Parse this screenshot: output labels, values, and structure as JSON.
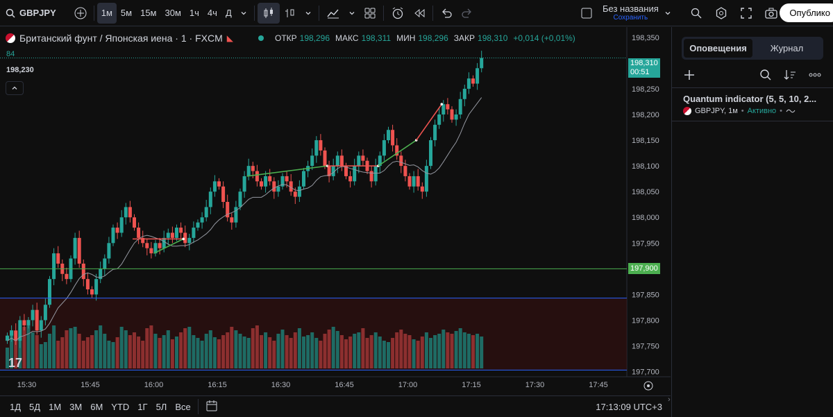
{
  "toolbar": {
    "symbol": "GBPJPY",
    "intervals": [
      "1м",
      "5м",
      "15м",
      "30м",
      "1ч",
      "4ч",
      "Д"
    ],
    "active_interval": "1м",
    "layout_name": "Без названия",
    "layout_status": "Сохранить",
    "publish_label": "Опублико"
  },
  "legend": {
    "title": "Британский фунт / Японская иена · 1 · FXCM",
    "open_label": "ОТКР",
    "open": "198,296",
    "high_label": "МАКС",
    "high": "198,311",
    "low_label": "МИН",
    "low": "198,296",
    "close_label": "ЗАКР",
    "close": "198,310",
    "change": "+0,014 (+0,01%)",
    "indicator_value": "84",
    "crosshair_price": "198,230"
  },
  "price_axis": {
    "ticks": [
      "198,350",
      "198,300",
      "198,250",
      "198,200",
      "198,150",
      "198,100",
      "198,050",
      "198,000",
      "197,950",
      "197,900",
      "197,850",
      "197,800",
      "197,750",
      "197,700"
    ],
    "last_price": "198,310",
    "countdown": "00:51",
    "alert_line_price": "197,900"
  },
  "time_axis": {
    "ticks": [
      "15:30",
      "15:45",
      "16:00",
      "16:15",
      "16:30",
      "16:45",
      "17:00",
      "17:15",
      "17:30",
      "17:45"
    ]
  },
  "bottom": {
    "ranges": [
      "1Д",
      "5Д",
      "1М",
      "3М",
      "6М",
      "YTD",
      "1Г",
      "5Л",
      "Все"
    ],
    "clock": "17:13:09 UTC+3"
  },
  "panel": {
    "tabs": [
      "Оповещения",
      "Журнал"
    ],
    "active_tab": "Оповещения",
    "alert_title": "Quantum indicator (5, 5, 10, 2...",
    "alert_symbol": "GBPJPY, 1м",
    "alert_status": "Активно"
  },
  "colors": {
    "up": "#26a69a",
    "down": "#ef5350",
    "background": "#0f0f0f",
    "alert_line": "#4caf50",
    "zone_line": "#2962ff"
  },
  "chart_data": {
    "type": "candlestick",
    "symbol": "GBPJPY",
    "ylim": [
      197.69,
      198.37
    ],
    "x_start": "15:25",
    "candle_minutes": 1,
    "closes": [
      197.77,
      197.78,
      197.76,
      197.8,
      197.79,
      197.8,
      197.82,
      197.78,
      197.8,
      197.83,
      197.88,
      197.93,
      197.91,
      197.89,
      197.88,
      197.92,
      197.96,
      197.91,
      197.88,
      197.86,
      197.85,
      197.88,
      197.9,
      197.92,
      197.95,
      197.98,
      197.97,
      198.0,
      198.02,
      198.0,
      197.98,
      197.96,
      197.95,
      197.94,
      197.93,
      197.95,
      197.94,
      197.96,
      197.97,
      197.96,
      197.98,
      197.97,
      197.95,
      197.96,
      197.98,
      197.99,
      198.0,
      198.02,
      198.05,
      198.07,
      198.06,
      198.03,
      198.0,
      197.99,
      198.02,
      198.05,
      198.08,
      198.1,
      198.09,
      198.07,
      198.06,
      198.08,
      198.07,
      198.05,
      198.06,
      198.08,
      198.07,
      198.05,
      198.04,
      198.06,
      198.09,
      198.1,
      198.12,
      198.15,
      198.13,
      198.1,
      198.08,
      198.1,
      198.12,
      198.1,
      198.08,
      198.07,
      198.1,
      198.12,
      198.11,
      198.09,
      198.07,
      198.1,
      198.12,
      198.15,
      198.17,
      198.14,
      198.12,
      198.1,
      198.08,
      198.06,
      198.08,
      198.06,
      198.05,
      198.1,
      198.15,
      198.18,
      198.2,
      198.22,
      198.21,
      198.19,
      198.2,
      198.23,
      198.25,
      198.27,
      198.26,
      198.29,
      198.31
    ],
    "volumes": [
      30,
      55,
      40,
      45,
      60,
      70,
      52,
      48,
      35,
      38,
      50,
      62,
      40,
      45,
      55,
      58,
      60,
      50,
      40,
      45,
      48,
      55,
      62,
      50,
      40,
      38,
      45,
      60,
      55,
      48,
      52,
      46,
      40,
      58,
      62,
      50,
      44,
      48,
      55,
      42,
      46,
      52,
      58,
      60,
      48,
      44,
      40,
      50,
      55,
      45,
      42,
      48,
      52,
      60,
      55,
      50,
      46,
      44,
      58,
      62,
      48,
      52,
      45,
      40,
      50,
      56,
      48,
      44,
      52,
      58,
      46,
      48,
      52,
      44,
      40,
      50,
      56,
      60,
      54,
      48,
      42,
      46,
      50,
      52,
      58,
      44,
      48,
      52,
      46,
      40,
      38,
      44,
      52,
      56,
      50,
      48,
      42,
      40,
      46,
      52,
      44,
      48,
      50,
      56,
      52,
      50,
      54,
      58,
      52,
      50,
      48,
      50,
      46
    ]
  }
}
